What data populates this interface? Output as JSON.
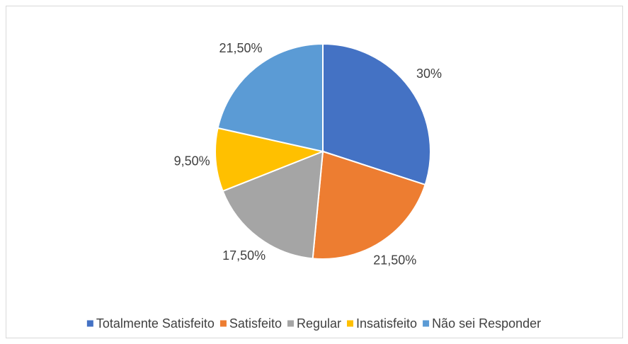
{
  "chart_data": {
    "type": "pie",
    "categories": [
      "Totalmente Satisfeito",
      "Satisfeito",
      "Regular",
      "Insatisfeito",
      "Não sei Responder"
    ],
    "values": [
      30,
      21.5,
      17.5,
      9.5,
      21.5
    ],
    "value_labels": [
      "30%",
      "21,50%",
      "17,50%",
      "9,50%",
      "21,50%"
    ],
    "colors": [
      "#4472c4",
      "#ed7d31",
      "#a5a5a5",
      "#ffc000",
      "#5b9bd5"
    ],
    "legend": "bottom"
  }
}
